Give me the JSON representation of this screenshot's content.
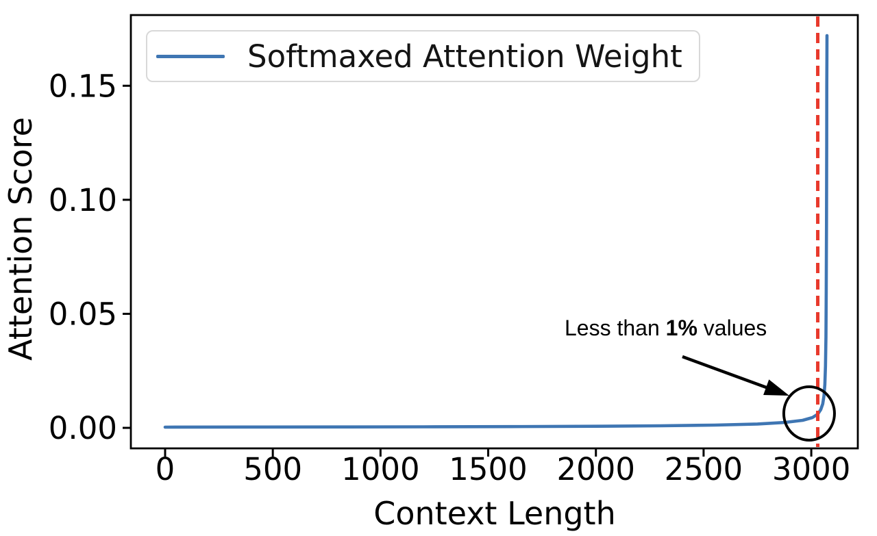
{
  "figure": {
    "background": "#ffffff"
  },
  "chart_data": {
    "type": "line",
    "title": "",
    "xlabel": "Context Length",
    "ylabel": "Attention Score",
    "grid": false,
    "xlim": [
      -159,
      3216
    ],
    "ylim": [
      -0.009,
      0.181
    ],
    "xticks": {
      "values": [
        0,
        500,
        1000,
        1500,
        2000,
        2500,
        3000
      ],
      "labels": [
        "0",
        "500",
        "1000",
        "1500",
        "2000",
        "2500",
        "3000"
      ]
    },
    "yticks": {
      "values": [
        0,
        0.05,
        0.1,
        0.15
      ],
      "labels": [
        "0.00",
        "0.05",
        "0.10",
        "0.15"
      ]
    },
    "legend": {
      "position": "upper left",
      "entries": [
        {
          "label": "Softmaxed Attention Weight",
          "color": "#3f76b3"
        }
      ]
    },
    "series": [
      {
        "name": "Softmaxed Attention Weight",
        "color": "#3f76b3",
        "points": [
          [
            0,
            0.0003
          ],
          [
            400,
            0.00035
          ],
          [
            800,
            0.0004
          ],
          [
            1200,
            0.00045
          ],
          [
            1600,
            0.00055
          ],
          [
            2000,
            0.0007
          ],
          [
            2300,
            0.0009
          ],
          [
            2550,
            0.0012
          ],
          [
            2750,
            0.0017
          ],
          [
            2880,
            0.0024
          ],
          [
            2960,
            0.0033
          ],
          [
            3005,
            0.0045
          ],
          [
            3030,
            0.006
          ],
          [
            3044,
            0.008
          ],
          [
            3053,
            0.0105
          ],
          [
            3059,
            0.014
          ],
          [
            3063,
            0.019
          ],
          [
            3066,
            0.027
          ],
          [
            3068,
            0.04
          ],
          [
            3069.5,
            0.06
          ],
          [
            3070.5,
            0.09
          ],
          [
            3071.5,
            0.125
          ],
          [
            3072,
            0.15
          ],
          [
            3072.5,
            0.163
          ],
          [
            3073,
            0.172
          ]
        ],
        "peak_value": 0.172
      }
    ],
    "vline": {
      "x": 3030,
      "color": "#e8392c",
      "style": "dashed"
    },
    "annotation": {
      "full_text": "Less than 1% values",
      "text_parts": {
        "normal_1": "Less than ",
        "bold": "1%",
        "normal_2": " values"
      },
      "circle_center": {
        "x": 2990,
        "y": 0.0063
      }
    }
  }
}
